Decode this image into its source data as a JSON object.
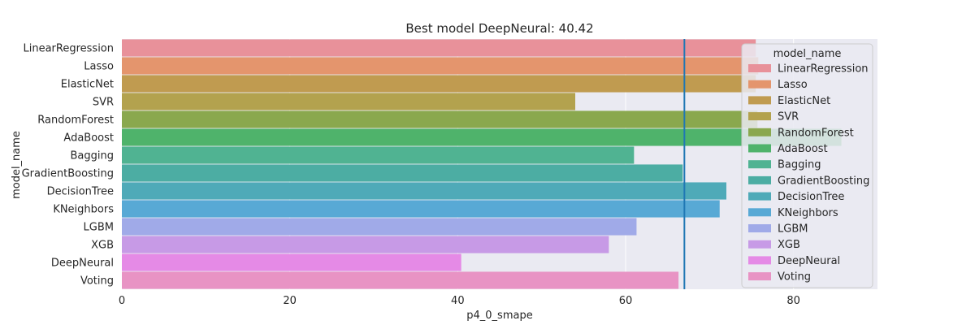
{
  "chart_data": {
    "type": "bar",
    "orientation": "horizontal",
    "title": "Best model DeepNeural: 40.42",
    "xlabel": "p4_0_smape",
    "ylabel": "model_name",
    "xlim": [
      0,
      90
    ],
    "xticks": [
      0,
      20,
      40,
      60,
      80
    ],
    "grid": true,
    "legend": {
      "title": "model_name",
      "placement": "right"
    },
    "reference_line": {
      "x": 67.0,
      "color": "#1f77b4"
    },
    "categories": [
      "LinearRegression",
      "Lasso",
      "ElasticNet",
      "SVR",
      "RandomForest",
      "AdaBoost",
      "Bagging",
      "GradientBoosting",
      "DecisionTree",
      "KNeighbors",
      "LGBM",
      "XGB",
      "DeepNeural",
      "Voting"
    ],
    "values": [
      75.5,
      75.8,
      75.5,
      54.0,
      75.7,
      85.7,
      61.0,
      66.8,
      72.0,
      71.2,
      61.3,
      58.0,
      40.42,
      66.3
    ],
    "colors": [
      "#e8919a",
      "#e4956d",
      "#c09b50",
      "#b3a24e",
      "#8aa84e",
      "#4fb36b",
      "#50b392",
      "#4cada3",
      "#4faab8",
      "#58a9d5",
      "#a0aae8",
      "#c79ae6",
      "#e58ae6",
      "#e893c4"
    ]
  }
}
